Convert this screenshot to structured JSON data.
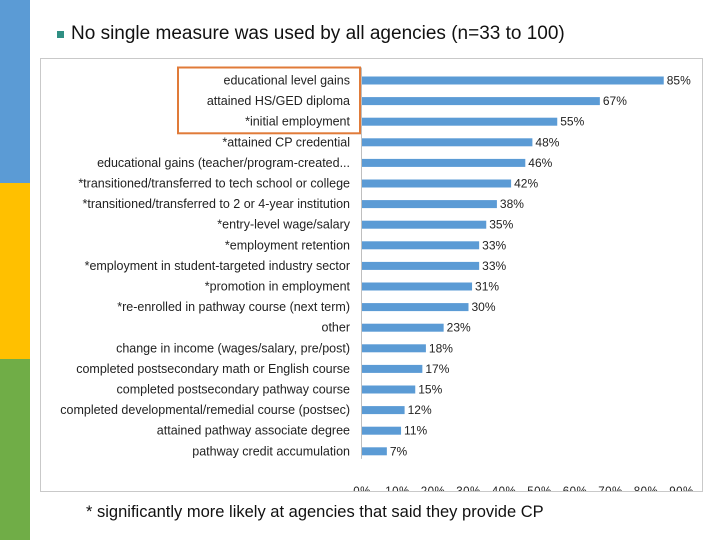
{
  "slide": {
    "title": "No single measure was used by all agencies (n=33 to 100)",
    "footnote": "* significantly more likely at agencies that said they provide CP",
    "colors": {
      "bar": "#5b9bd5",
      "highlight_border": "#e07b39",
      "bullet": "#2f8f83",
      "sidebar": [
        "#5b9bd5",
        "#ffc000",
        "#70ad47"
      ]
    }
  },
  "chart_data": {
    "type": "bar",
    "orientation": "horizontal",
    "categories": [
      "educational level gains",
      "attained HS/GED diploma",
      "*initial employment",
      "*attained CP credential",
      "educational gains (teacher/program-created...",
      "*transitioned/transferred to tech school or college",
      "*transitioned/transferred to 2 or 4-year institution",
      "*entry-level wage/salary",
      "*employment retention",
      "*employment in student-targeted industry sector",
      "*promotion in employment",
      "*re-enrolled in pathway course (next term)",
      "other",
      "change in income (wages/salary, pre/post)",
      "completed postsecondary math or English course",
      "completed postsecondary pathway course",
      "completed developmental/remedial course (postsec)",
      "attained pathway associate degree",
      "pathway credit accumulation"
    ],
    "values": [
      85,
      67,
      55,
      48,
      46,
      42,
      38,
      35,
      33,
      33,
      31,
      30,
      23,
      18,
      17,
      15,
      12,
      11,
      7
    ],
    "value_labels": [
      "85%",
      "67%",
      "55%",
      "48%",
      "46%",
      "42%",
      "38%",
      "35%",
      "33%",
      "33%",
      "31%",
      "30%",
      "23%",
      "18%",
      "17%",
      "15%",
      "12%",
      "11%",
      "7%"
    ],
    "xlim": [
      0,
      90
    ],
    "xticks": [
      "0%",
      "10%",
      "20%",
      "30%",
      "40%",
      "50%",
      "60%",
      "70%",
      "80%",
      "90%"
    ],
    "highlighted_categories": [
      "educational level gains",
      "attained HS/GED diploma",
      "*initial employment"
    ],
    "grid": false,
    "legend": "none"
  }
}
